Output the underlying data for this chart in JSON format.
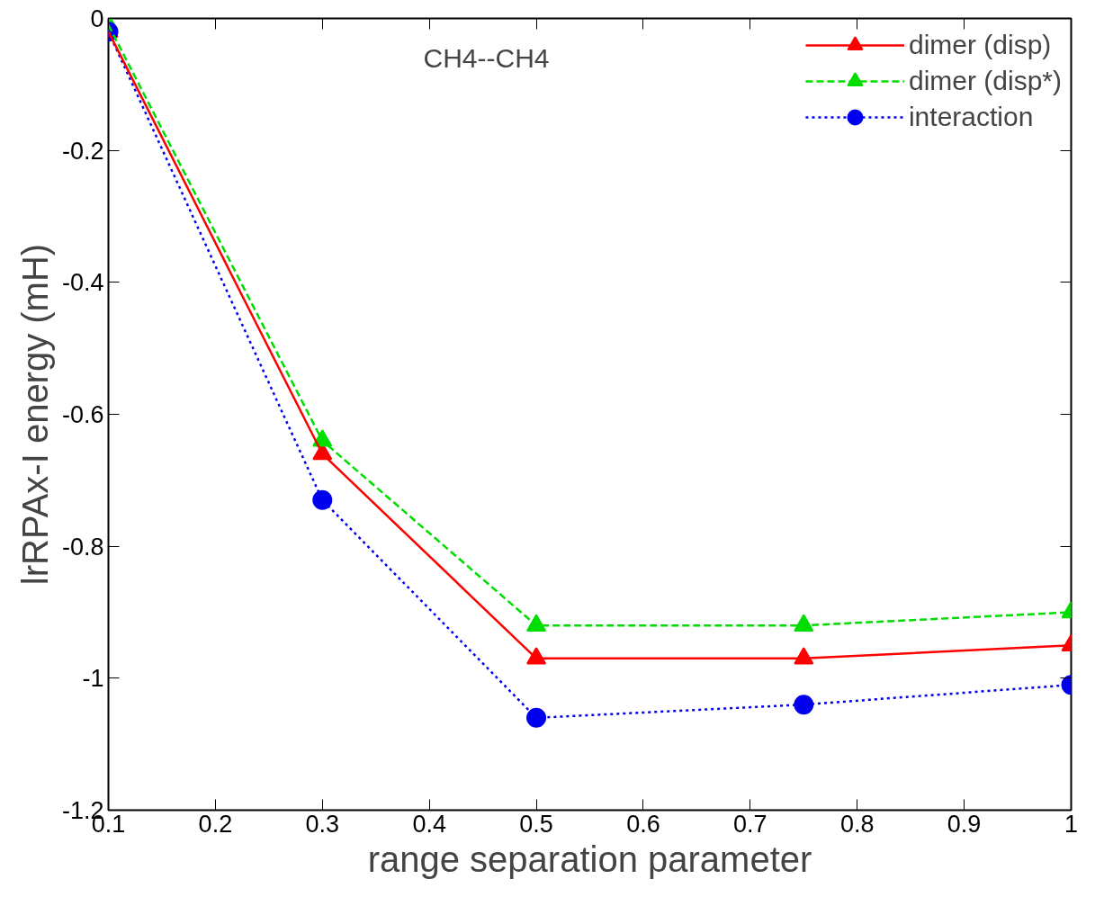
{
  "chart_data": {
    "type": "line",
    "xlabel": "range separation parameter",
    "ylabel": "lrRPAx-I energy (mH)",
    "annotations": [
      "CH4--CH4"
    ],
    "x": [
      0.1,
      0.3,
      0.5,
      0.75,
      1
    ],
    "series": [
      {
        "name": "dimer (disp)",
        "color": "#ff0000",
        "marker": "triangle",
        "line_style": "solid",
        "values": [
          -0.02,
          -0.66,
          -0.97,
          -0.97,
          -0.95
        ]
      },
      {
        "name": "dimer (disp*)",
        "color": "#00dd00",
        "marker": "triangle",
        "line_style": "dashed",
        "values": [
          -0.01,
          -0.64,
          -0.92,
          -0.92,
          -0.9
        ]
      },
      {
        "name": "interaction",
        "color": "#0000ee",
        "marker": "circle",
        "line_style": "dotted",
        "values": [
          -0.02,
          -0.73,
          -1.06,
          -1.04,
          -1.01
        ]
      }
    ],
    "xlim": [
      0.1,
      1
    ],
    "xticks": [
      0.1,
      0.2,
      0.3,
      0.4,
      0.5,
      0.6,
      0.7,
      0.8,
      0.9,
      1
    ],
    "ylim": [
      -1.2,
      0
    ],
    "yticks": [
      -1.2,
      -1,
      -0.8,
      -0.6,
      -0.4,
      -0.2,
      0
    ],
    "grid": false,
    "legend": "top right"
  }
}
